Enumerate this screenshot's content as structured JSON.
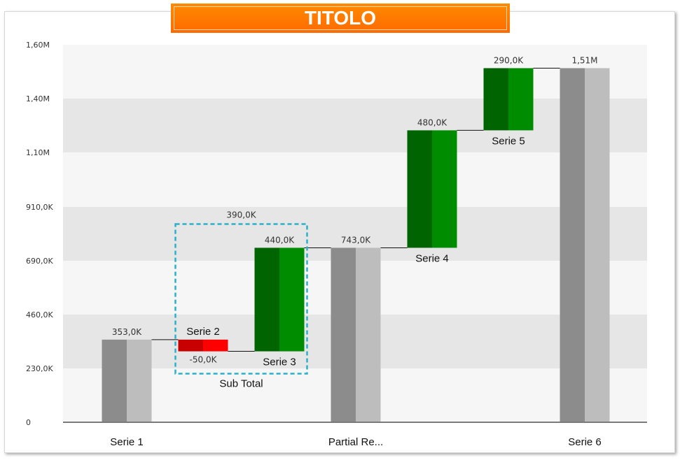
{
  "title": "TITOLO",
  "chart_data": {
    "type": "bar",
    "subtype": "waterfall",
    "title": "TITOLO",
    "ylim": [
      0,
      1600000
    ],
    "y_ticks": [
      {
        "label": "0",
        "value": 0
      },
      {
        "label": "230,0K",
        "value": 230000
      },
      {
        "label": "460,0K",
        "value": 460000
      },
      {
        "label": "690,0K",
        "value": 690000
      },
      {
        "label": "910,0K",
        "value": 910000
      },
      {
        "label": "1,10M",
        "value": 1100000
      },
      {
        "label": "1,40M",
        "value": 1400000
      },
      {
        "label": "1,60M",
        "value": 1600000
      }
    ],
    "bars": [
      {
        "category": "Serie 1",
        "kind": "total",
        "start": 0,
        "end": 353000,
        "value_label": "353,0K",
        "label_pos": "axis",
        "colors": [
          "#8c8c8c",
          "#bdbdbd"
        ]
      },
      {
        "category": "Serie 2",
        "kind": "delta",
        "start": 353000,
        "end": 303000,
        "value_label": "-50,0K",
        "label_pos": "name-above",
        "colors": [
          "#c80000",
          "#ff0000"
        ]
      },
      {
        "category": "Serie 3",
        "kind": "delta",
        "start": 303000,
        "end": 743000,
        "value_label": "440,0K",
        "label_pos": "name-below",
        "colors": [
          "#006400",
          "#008c00"
        ]
      },
      {
        "category": "Partial Re...",
        "kind": "total",
        "start": 0,
        "end": 743000,
        "value_label": "743,0K",
        "label_pos": "axis",
        "colors": [
          "#8c8c8c",
          "#bdbdbd"
        ]
      },
      {
        "category": "Serie 4",
        "kind": "delta",
        "start": 743000,
        "end": 1223000,
        "value_label": "480,0K",
        "label_pos": "name-below",
        "colors": [
          "#006400",
          "#008c00"
        ]
      },
      {
        "category": "Serie 5",
        "kind": "delta",
        "start": 1223000,
        "end": 1513000,
        "value_label": "290,0K",
        "label_pos": "name-below",
        "colors": [
          "#006400",
          "#008c00"
        ]
      },
      {
        "category": "Serie 6",
        "kind": "total",
        "start": 0,
        "end": 1513000,
        "value_label": "1,51M",
        "label_pos": "axis",
        "colors": [
          "#8c8c8c",
          "#bdbdbd"
        ]
      }
    ],
    "group": {
      "label": "Sub Total",
      "value_label": "390,0K",
      "value": 390000,
      "members": [
        "Serie 2",
        "Serie 3"
      ],
      "border_color": "#2ab0c8"
    },
    "band_colors": [
      "#f6f6f6",
      "#e6e6e6"
    ],
    "grid": false,
    "legend": "none"
  }
}
